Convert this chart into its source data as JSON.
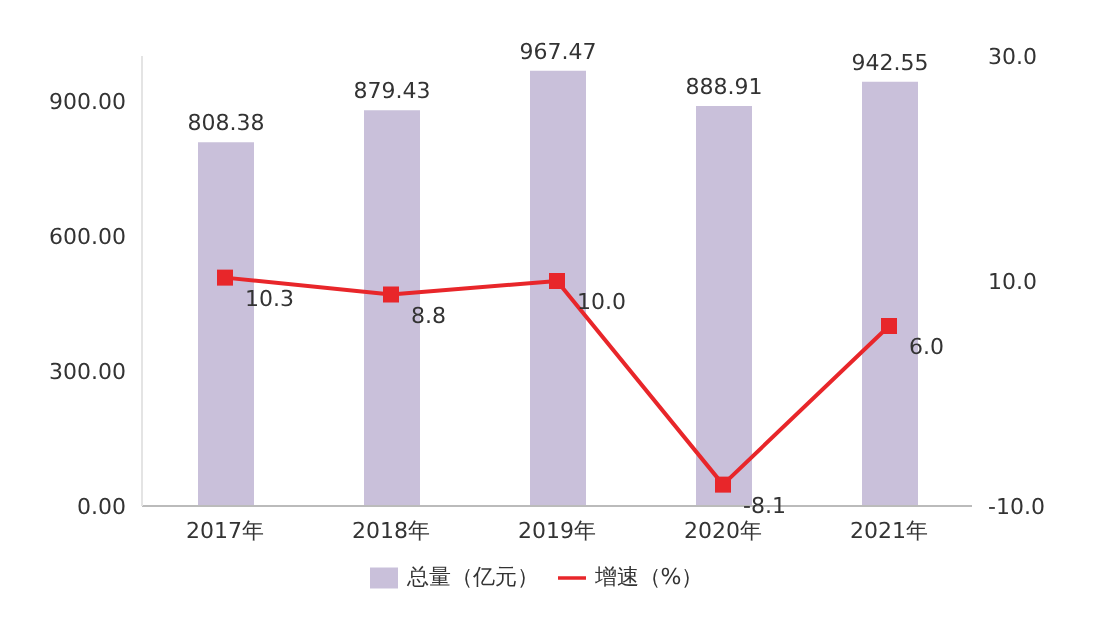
{
  "chart_data": {
    "type": "bar",
    "categories": [
      "2017年",
      "2018年",
      "2019年",
      "2020年",
      "2021年"
    ],
    "series": [
      {
        "name": "总量（亿元）",
        "color": "#c9c0da",
        "values": [
          808.38,
          879.43,
          967.47,
          888.91,
          942.55
        ],
        "value_labels": [
          "808.38",
          "879.43",
          "967.47",
          "888.91",
          "942.55"
        ]
      },
      {
        "name": "增速（%）",
        "type": "line",
        "axis": "y2",
        "color": "#e8262a",
        "values": [
          10.3,
          8.8,
          10.0,
          -8.1,
          6.0
        ],
        "value_labels": [
          "10.3",
          "8.8",
          "10.0",
          "-8.1",
          "6.0"
        ]
      }
    ],
    "ylim": [
      0,
      1000
    ],
    "yticks": [
      {
        "value": 0,
        "label": "0.00"
      },
      {
        "value": 300,
        "label": "300.00"
      },
      {
        "value": 600,
        "label": "600.00"
      },
      {
        "value": 900,
        "label": "900.00"
      }
    ],
    "y2lim": [
      -10,
      30
    ],
    "y2ticks": [
      {
        "value": -10,
        "label": "-10.0"
      },
      {
        "value": 10,
        "label": "10.0"
      },
      {
        "value": 30,
        "label": "30.0"
      }
    ],
    "grid": false,
    "legend": "bottom",
    "marker": "square",
    "line_style": "solid"
  }
}
